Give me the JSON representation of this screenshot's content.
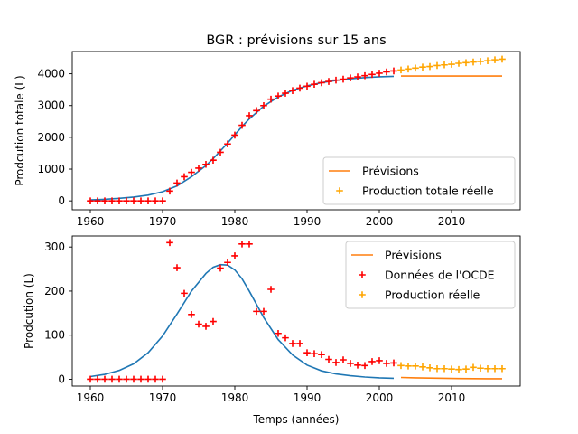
{
  "chart_data": [
    {
      "type": "line",
      "title": "BGR : prévisions sur 15 ans",
      "xlabel": "",
      "ylabel": "Prodcution totale (L)",
      "xlim": [
        1957.5,
        2019.5
      ],
      "ylim": [
        -280,
        4700
      ],
      "xticks": [
        1960,
        1970,
        1980,
        1990,
        2000,
        2010
      ],
      "xtick_labels": [
        "1960",
        "1970",
        "1980",
        "1990",
        "2000",
        "2010"
      ],
      "yticks": [
        0,
        1000,
        2000,
        3000,
        4000
      ],
      "ytick_labels": [
        "0",
        "1000",
        "2000",
        "3000",
        "4000"
      ],
      "legend_position": "lower-right",
      "legend": [
        "Prévisions",
        "Production totale réelle"
      ],
      "colors": {
        "fit": "#1f77b4",
        "forecast": "#ff7f0e",
        "historic_points": "#ff0000",
        "forecast_points": "#ffa500"
      },
      "series": [
        {
          "kind": "fit-line",
          "color": "#1f77b4",
          "x": [
            1960,
            1962,
            1964,
            1966,
            1968,
            1970,
            1972,
            1974,
            1976,
            1977,
            1978,
            1979,
            1980,
            1981,
            1982,
            1984,
            1986,
            1988,
            1990,
            1992,
            1994,
            1996,
            1998,
            2000,
            2002
          ],
          "values": [
            30,
            50,
            80,
            120,
            180,
            290,
            470,
            760,
            1110,
            1330,
            1570,
            1820,
            2080,
            2340,
            2580,
            2980,
            3270,
            3480,
            3620,
            3720,
            3790,
            3840,
            3880,
            3905,
            3920
          ]
        },
        {
          "name": "Prévisions",
          "kind": "forecast-line",
          "color": "#ff7f0e",
          "x": [
            2003,
            2017
          ],
          "values": [
            3930,
            3930
          ]
        },
        {
          "kind": "historic-points",
          "color": "#ff0000",
          "x": [
            1960,
            1961,
            1962,
            1963,
            1964,
            1965,
            1966,
            1967,
            1968,
            1969,
            1970,
            1971,
            1972,
            1973,
            1974,
            1975,
            1976,
            1977,
            1978,
            1979,
            1980,
            1981,
            1982,
            1983,
            1984,
            1985,
            1986,
            1987,
            1988,
            1989,
            1990,
            1991,
            1992,
            1993,
            1994,
            1995,
            1996,
            1997,
            1998,
            1999,
            2000,
            2001,
            2002
          ],
          "values": [
            0,
            0,
            0,
            0,
            0,
            0,
            0,
            0,
            0,
            0,
            0,
            310,
            560,
            760,
            900,
            1030,
            1150,
            1280,
            1530,
            1790,
            2070,
            2380,
            2680,
            2840,
            3000,
            3200,
            3300,
            3390,
            3470,
            3550,
            3610,
            3670,
            3720,
            3760,
            3800,
            3830,
            3870,
            3900,
            3940,
            3980,
            4020,
            4060,
            4090
          ]
        },
        {
          "name": "Production totale réelle",
          "kind": "forecast-points",
          "color": "#ffa500",
          "x": [
            2003,
            2004,
            2005,
            2006,
            2007,
            2008,
            2009,
            2010,
            2011,
            2012,
            2013,
            2014,
            2015,
            2016,
            2017
          ],
          "values": [
            4120,
            4150,
            4180,
            4210,
            4230,
            4260,
            4280,
            4300,
            4330,
            4350,
            4370,
            4390,
            4410,
            4440,
            4460
          ]
        }
      ]
    },
    {
      "type": "line",
      "title": "",
      "xlabel": "Temps (années)",
      "ylabel": "Prodcution (L)",
      "xlim": [
        1957.5,
        2019.5
      ],
      "ylim": [
        -15.5,
        325
      ],
      "xticks": [
        1960,
        1970,
        1980,
        1990,
        2000,
        2010
      ],
      "xtick_labels": [
        "1960",
        "1970",
        "1980",
        "1990",
        "2000",
        "2010"
      ],
      "yticks": [
        0,
        100,
        200,
        300
      ],
      "ytick_labels": [
        "0",
        "100",
        "200",
        "300"
      ],
      "legend_position": "upper-right",
      "legend": [
        "Prévisions",
        "Données de l'OCDE",
        "Production réelle"
      ],
      "series": [
        {
          "kind": "fit-line",
          "color": "#1f77b4",
          "x": [
            1960,
            1962,
            1964,
            1966,
            1968,
            1970,
            1972,
            1974,
            1976,
            1977,
            1978,
            1979,
            1980,
            1981,
            1982,
            1984,
            1986,
            1988,
            1990,
            1992,
            1994,
            1996,
            1998,
            2000,
            2002
          ],
          "values": [
            6,
            11,
            20,
            35,
            60,
            98,
            148,
            200,
            240,
            254,
            260,
            259,
            248,
            228,
            200,
            140,
            90,
            55,
            32,
            19,
            12,
            8,
            5,
            3,
            2
          ]
        },
        {
          "name": "Prévisions",
          "kind": "forecast-line",
          "color": "#ff7f0e",
          "x": [
            2003,
            2005,
            2007,
            2009,
            2011,
            2013,
            2015,
            2017
          ],
          "values": [
            4,
            3,
            2.5,
            2,
            1.6,
            1.3,
            1.1,
            1
          ]
        },
        {
          "name": "Données de l'OCDE",
          "kind": "historic-points",
          "color": "#ff0000",
          "x": [
            1960,
            1961,
            1962,
            1963,
            1964,
            1965,
            1966,
            1967,
            1968,
            1969,
            1970,
            1971,
            1972,
            1973,
            1974,
            1975,
            1976,
            1977,
            1978,
            1979,
            1980,
            1981,
            1982,
            1983,
            1984,
            1985,
            1986,
            1987,
            1988,
            1989,
            1990,
            1991,
            1992,
            1993,
            1994,
            1995,
            1996,
            1997,
            1998,
            1999,
            2000,
            2001,
            2002
          ],
          "values": [
            0,
            0,
            0,
            0,
            0,
            0,
            0,
            0,
            0,
            0,
            0,
            310,
            253,
            195,
            147,
            125,
            120,
            131,
            252,
            265,
            280,
            307,
            307,
            154,
            154,
            204,
            104,
            94,
            81,
            81,
            60,
            58,
            56,
            45,
            38,
            44,
            36,
            32,
            31,
            40,
            42,
            36,
            37
          ]
        },
        {
          "name": "Production réelle",
          "kind": "forecast-points",
          "color": "#ffa500",
          "x": [
            2003,
            2004,
            2005,
            2006,
            2007,
            2008,
            2009,
            2010,
            2011,
            2012,
            2013,
            2014,
            2015,
            2016,
            2017
          ],
          "values": [
            31,
            30,
            30,
            28,
            26,
            24,
            24,
            23,
            22,
            23,
            27,
            25,
            24,
            24,
            24
          ]
        }
      ]
    }
  ]
}
